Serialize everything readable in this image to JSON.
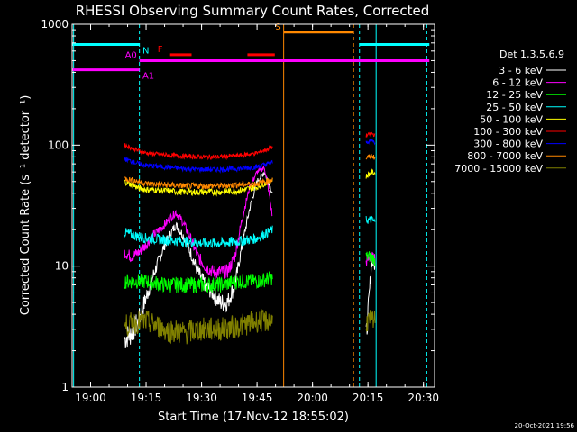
{
  "chart_data": {
    "type": "line",
    "title": "RHESSI Observing Summary Count Rates, Corrected",
    "xlabel": "Start Time (17-Nov-12 18:55:02)",
    "ylabel": "Corrected Count Rate (s⁻¹ detector⁻¹)",
    "yscale": "log",
    "xlim": [
      0,
      98
    ],
    "ylim": [
      1,
      1000
    ],
    "x_units": "minutes from 18:55:02",
    "xticks": [
      {
        "x": 5,
        "label": "19:00"
      },
      {
        "x": 20,
        "label": "19:15"
      },
      {
        "x": 35,
        "label": "19:30"
      },
      {
        "x": 50,
        "label": "19:45"
      },
      {
        "x": 65,
        "label": "20:00"
      },
      {
        "x": 80,
        "label": "20:15"
      },
      {
        "x": 95,
        "label": "20:30"
      }
    ],
    "yticks": [
      {
        "y": 1,
        "label": "1"
      },
      {
        "y": 10,
        "label": "10"
      },
      {
        "y": 100,
        "label": "100"
      },
      {
        "y": 1000,
        "label": "1000"
      }
    ],
    "legend_title": "Det 1,3,5,6,9",
    "legend_position": "right",
    "series": [
      {
        "name": "3 - 6 keV",
        "color": "#ffffff",
        "points": [
          [
            14.2,
            2.5
          ],
          [
            16,
            2.8
          ],
          [
            18,
            3.5
          ],
          [
            20,
            5.5
          ],
          [
            22,
            8.5
          ],
          [
            25,
            15
          ],
          [
            28,
            22
          ],
          [
            30,
            18
          ],
          [
            32,
            13
          ],
          [
            34,
            9
          ],
          [
            36,
            7
          ],
          [
            38,
            6
          ],
          [
            40,
            5
          ],
          [
            42,
            5
          ],
          [
            44,
            7
          ],
          [
            46,
            15
          ],
          [
            48,
            30
          ],
          [
            50,
            50
          ],
          [
            52,
            60
          ],
          [
            53,
            50
          ],
          [
            54.2,
            40
          ],
          [
            79.5,
            2.5
          ],
          [
            81,
            11
          ],
          [
            82,
            10
          ]
        ]
      },
      {
        "name": "6 - 12 keV",
        "color": "#ff00ff",
        "points": [
          [
            14.2,
            13
          ],
          [
            16,
            12
          ],
          [
            18,
            13
          ],
          [
            20,
            15
          ],
          [
            22,
            18
          ],
          [
            25,
            22
          ],
          [
            28,
            28
          ],
          [
            30,
            23
          ],
          [
            32,
            17
          ],
          [
            34,
            12
          ],
          [
            36,
            10
          ],
          [
            38,
            9
          ],
          [
            40,
            9
          ],
          [
            42,
            9
          ],
          [
            44,
            12
          ],
          [
            46,
            25
          ],
          [
            48,
            45
          ],
          [
            50,
            60
          ],
          [
            52,
            65
          ],
          [
            53,
            45
          ],
          [
            54.2,
            25
          ],
          [
            79.5,
            11
          ],
          [
            81,
            12
          ],
          [
            82,
            11
          ]
        ]
      },
      {
        "name": "12 - 25 keV",
        "color": "#00ff00",
        "points": [
          [
            14.2,
            7.5
          ],
          [
            18,
            7.5
          ],
          [
            20,
            7.5
          ],
          [
            25,
            7
          ],
          [
            30,
            7
          ],
          [
            35,
            7
          ],
          [
            40,
            7
          ],
          [
            45,
            7.5
          ],
          [
            50,
            7.5
          ],
          [
            54.2,
            8
          ],
          [
            79.5,
            12
          ],
          [
            81,
            12
          ],
          [
            82,
            11
          ]
        ]
      },
      {
        "name": "25 - 50 keV",
        "color": "#00ffff",
        "points": [
          [
            14.2,
            19
          ],
          [
            18,
            17.5
          ],
          [
            20,
            17
          ],
          [
            25,
            16.5
          ],
          [
            30,
            16
          ],
          [
            35,
            15.5
          ],
          [
            40,
            15.5
          ],
          [
            45,
            16
          ],
          [
            50,
            17
          ],
          [
            54.2,
            20
          ],
          [
            79.5,
            24
          ],
          [
            81,
            24
          ],
          [
            82,
            23
          ]
        ]
      },
      {
        "name": "50 - 100 keV",
        "color": "#ffff00",
        "points": [
          [
            14.2,
            50
          ],
          [
            18,
            44
          ],
          [
            20,
            43
          ],
          [
            25,
            42
          ],
          [
            30,
            41
          ],
          [
            35,
            41
          ],
          [
            40,
            41
          ],
          [
            45,
            42
          ],
          [
            50,
            45
          ],
          [
            54.2,
            52
          ],
          [
            79.5,
            55
          ],
          [
            81,
            60
          ],
          [
            82,
            58
          ]
        ]
      },
      {
        "name": "100 - 300 keV",
        "color": "#ff0000",
        "points": [
          [
            14.2,
            100
          ],
          [
            18,
            90
          ],
          [
            20,
            86
          ],
          [
            25,
            83
          ],
          [
            30,
            81
          ],
          [
            35,
            80
          ],
          [
            40,
            80
          ],
          [
            45,
            82
          ],
          [
            50,
            86
          ],
          [
            54.2,
            96
          ],
          [
            79.5,
            120
          ],
          [
            81,
            125
          ],
          [
            82,
            120
          ]
        ]
      },
      {
        "name": "300 - 800 keV",
        "color": "#0000ff",
        "points": [
          [
            14.2,
            77
          ],
          [
            18,
            70
          ],
          [
            20,
            68
          ],
          [
            25,
            66
          ],
          [
            30,
            64
          ],
          [
            35,
            63
          ],
          [
            40,
            63
          ],
          [
            45,
            64
          ],
          [
            50,
            66
          ],
          [
            54.2,
            72
          ],
          [
            79.5,
            105
          ],
          [
            81,
            110
          ],
          [
            82,
            105
          ]
        ]
      },
      {
        "name": "800 - 7000 keV",
        "color": "#ff8800",
        "points": [
          [
            14.2,
            53
          ],
          [
            18,
            50
          ],
          [
            20,
            48
          ],
          [
            25,
            47
          ],
          [
            30,
            46
          ],
          [
            35,
            46
          ],
          [
            40,
            46
          ],
          [
            45,
            47
          ],
          [
            50,
            48
          ],
          [
            54.2,
            52
          ],
          [
            79.5,
            78
          ],
          [
            81,
            82
          ],
          [
            82,
            78
          ]
        ]
      },
      {
        "name": "7000 - 15000 keV",
        "color": "#808000",
        "points": [
          [
            14.2,
            3.2
          ],
          [
            17,
            3.4
          ],
          [
            20,
            3.5
          ],
          [
            25,
            3
          ],
          [
            30,
            2.8
          ],
          [
            35,
            3
          ],
          [
            40,
            3
          ],
          [
            45,
            3.2
          ],
          [
            50,
            3.5
          ],
          [
            54.2,
            3.5
          ],
          [
            79.5,
            3.5
          ],
          [
            81,
            3.5
          ],
          [
            82,
            3.5
          ]
        ]
      }
    ],
    "vertical_lines": [
      {
        "x": 0.4,
        "color": "#00ffff",
        "dashed": false
      },
      {
        "x": 18.2,
        "color": "#00ffff",
        "dashed": true
      },
      {
        "x": 57.2,
        "color": "#ff8800",
        "dashed": false
      },
      {
        "x": 76.1,
        "color": "#ff8800",
        "dashed": true
      },
      {
        "x": 77.7,
        "color": "#00ffff",
        "dashed": true
      },
      {
        "x": 82.2,
        "color": "#00ffff",
        "dashed": false
      },
      {
        "x": 95.9,
        "color": "#00ffff",
        "dashed": true
      }
    ],
    "top_bars": [
      {
        "label": "N",
        "color": "#00ffff",
        "x0": 0,
        "x1": 18.2,
        "y": 680,
        "label_x": 19,
        "label_side": "right"
      },
      {
        "label": "N",
        "color": "#00ffff",
        "x0": 77.7,
        "x1": 96.6,
        "y": 680,
        "label_x": null,
        "label_side": "none"
      },
      {
        "label": "A0",
        "color": "#ff00ff",
        "x0": 18.2,
        "x1": 96.6,
        "y": 500,
        "label_x": 17.5,
        "label_side": "left"
      },
      {
        "label": "A1",
        "color": "#ff00ff",
        "x0": 0,
        "x1": 18.2,
        "y": 420,
        "label_x": 19,
        "label_side": "right"
      },
      {
        "label": "S",
        "color": "#ff8800",
        "x0": 57.2,
        "x1": 76.1,
        "y": 860,
        "label_x": 56.5,
        "label_side": "left"
      },
      {
        "label": "F",
        "color": "#ff0000",
        "x0": 26.5,
        "x1": 32.3,
        "y": 560,
        "label_x": 24.5,
        "label_side": "left"
      },
      {
        "label": null,
        "color": "#ff0000",
        "x0": 47.4,
        "x1": 54.8,
        "y": 560,
        "label_x": null,
        "label_side": "none"
      }
    ]
  },
  "footer": {
    "timestamp": "20-Oct-2021 19:56"
  }
}
